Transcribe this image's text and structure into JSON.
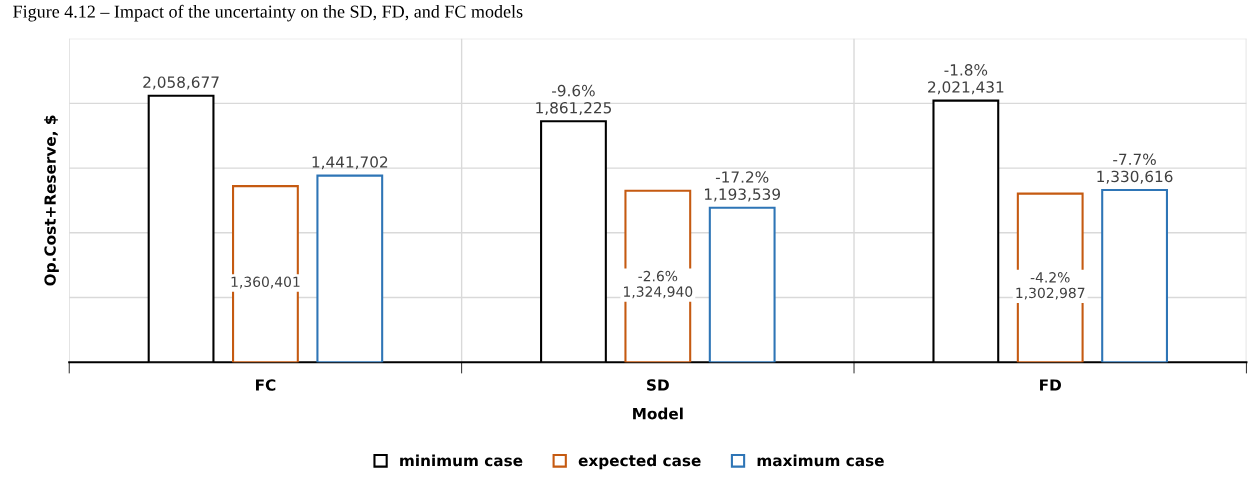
{
  "chart_data": {
    "type": "bar",
    "title": "Figure 4.12 – Impact of the uncertainty on the SD, FD, and FC models",
    "xlabel": "Model",
    "ylabel": "Op.Cost+Reserve, $",
    "categories": [
      "FC",
      "SD",
      "FD"
    ],
    "series": [
      {
        "name": "minimum case",
        "color": "#000000",
        "values": [
          2058677,
          1861225,
          2021431
        ],
        "value_labels": [
          "2,058,677",
          "-9.6%\n1,861,225",
          "-1.8%\n2,021,431"
        ]
      },
      {
        "name": "expected case",
        "color": "#c55a11",
        "values": [
          1360401,
          1324940,
          1302987
        ],
        "value_labels": [
          "1,360,401",
          "-2.6%\n1,324,940",
          "-4.2%\n1,302,987"
        ]
      },
      {
        "name": "maximum case",
        "color": "#2e75b6",
        "values": [
          1441702,
          1193539,
          1330616
        ],
        "value_labels": [
          "1,441,702",
          "-17.2%\n1,193,539",
          "-7.7%\n1,330,616"
        ]
      }
    ],
    "ylim": [
      0,
      2500000
    ],
    "yticks": [
      {
        "value": 500000,
        "label": null
      },
      {
        "value": 1000000,
        "label": null
      },
      {
        "value": 1500000,
        "label": null
      },
      {
        "value": 2000000,
        "label": null
      },
      {
        "value": 2500000,
        "label": null
      }
    ],
    "grid": true,
    "legend": "bottom",
    "tick_labels": "x"
  }
}
